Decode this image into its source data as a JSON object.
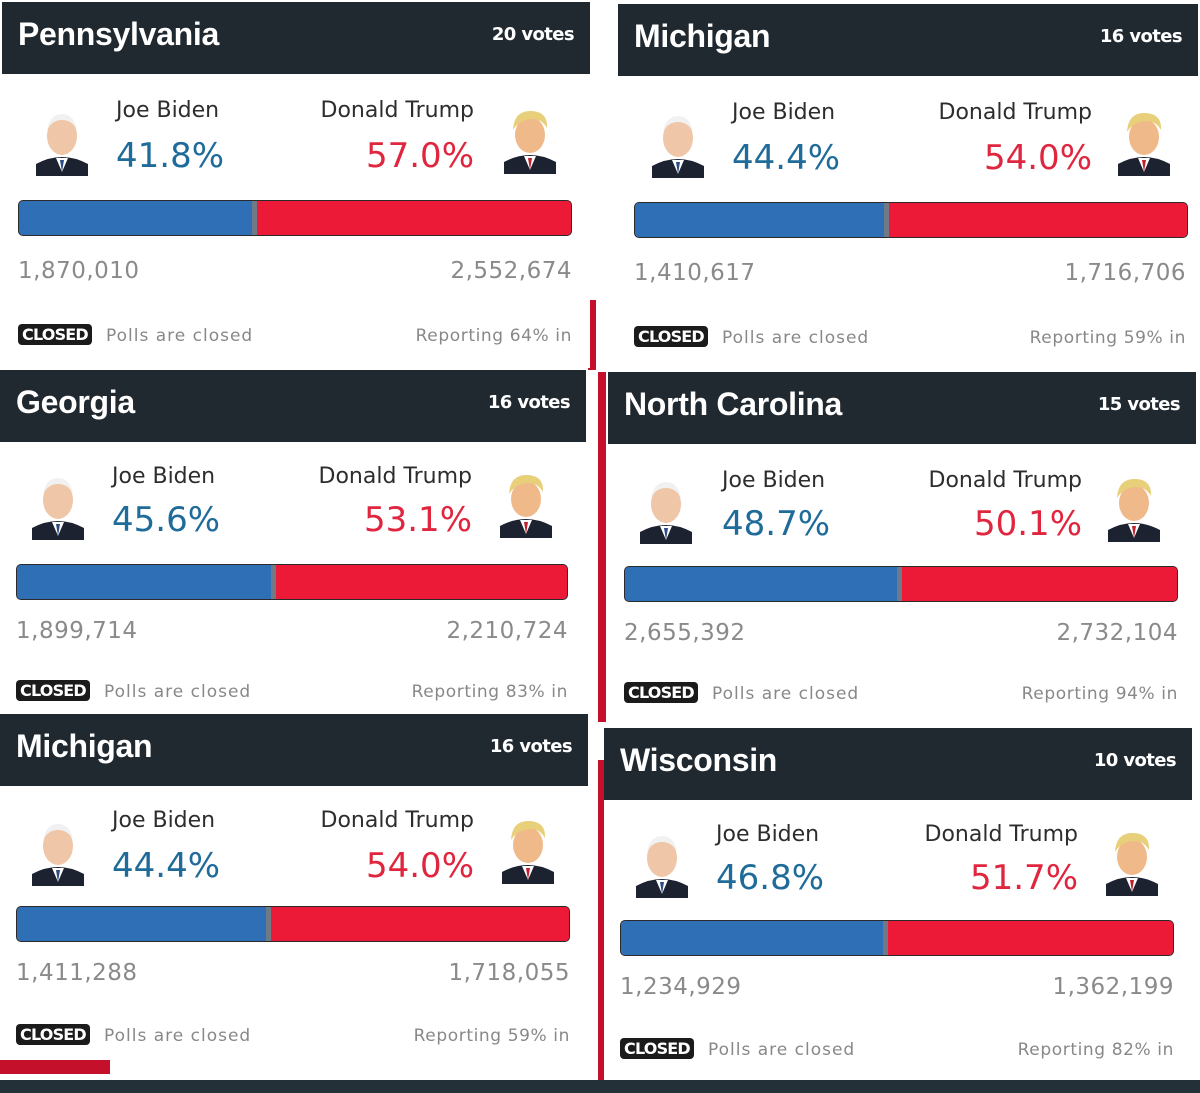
{
  "labels": {
    "biden": "Joe Biden",
    "trump": "Donald Trump",
    "closed_badge": "CLOSED",
    "polls_status": "Polls are closed"
  },
  "colors": {
    "header_bg": "#212930",
    "biden_blue": "#2f6fb6",
    "biden_text": "#1f6b99",
    "trump_red": "#ed1a37",
    "trump_text": "#e0253e"
  },
  "cards": [
    {
      "state": "Pennsylvania",
      "votes": "20 votes",
      "biden_pct": "41.8%",
      "trump_pct": "57.0%",
      "biden_votes": "1,870,010",
      "trump_votes": "2,552,674",
      "reporting": "Reporting 64% in",
      "biden_share": 0.423
    },
    {
      "state": "Michigan",
      "votes": "16 votes",
      "biden_pct": "44.4%",
      "trump_pct": "54.0%",
      "biden_votes": "1,410,617",
      "trump_votes": "1,716,706",
      "reporting": "Reporting 59% in",
      "biden_share": 0.451
    },
    {
      "state": "Georgia",
      "votes": "16 votes",
      "biden_pct": "45.6%",
      "trump_pct": "53.1%",
      "biden_votes": "1,899,714",
      "trump_votes": "2,210,724",
      "reporting": "Reporting 83% in",
      "biden_share": 0.462
    },
    {
      "state": "North Carolina",
      "votes": "15 votes",
      "biden_pct": "48.7%",
      "trump_pct": "50.1%",
      "biden_votes": "2,655,392",
      "trump_votes": "2,732,104",
      "reporting": "Reporting 94% in",
      "biden_share": 0.493
    },
    {
      "state": "Michigan",
      "votes": "16 votes",
      "biden_pct": "44.4%",
      "trump_pct": "54.0%",
      "biden_votes": "1,411,288",
      "trump_votes": "1,718,055",
      "reporting": "Reporting 59% in",
      "biden_share": 0.451
    },
    {
      "state": "Wisconsin",
      "votes": "10 votes",
      "biden_pct": "46.8%",
      "trump_pct": "51.7%",
      "biden_votes": "1,234,929",
      "trump_votes": "1,362,199",
      "reporting": "Reporting 82% in",
      "biden_share": 0.475
    }
  ]
}
